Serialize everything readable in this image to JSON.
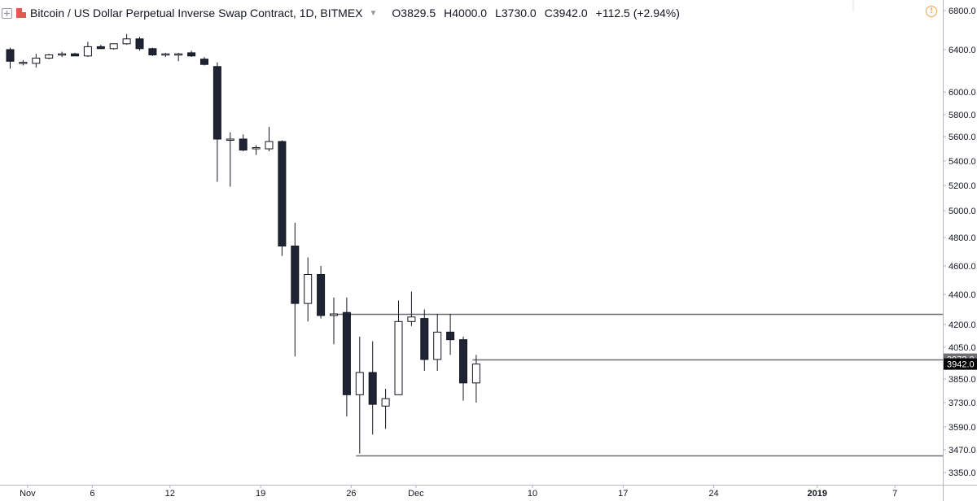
{
  "header": {
    "title": "Bitcoin / US Dollar Perpetual Inverse Swap Contract, 1D, BITMEX",
    "ohlc": [
      {
        "key": "O",
        "value": "3829.5"
      },
      {
        "key": "H",
        "value": "4000.0"
      },
      {
        "key": "L",
        "value": "3730.0"
      },
      {
        "key": "C",
        "value": "3942.0"
      }
    ],
    "change": "+112.5 (+2.94%)",
    "icons": {
      "expand": "expand-icon",
      "logo": "bitmex-logo",
      "dropdown": "chevron-down-icon",
      "warning": "warning-icon"
    }
  },
  "chart_data": {
    "type": "candlestick",
    "up_color": "#ffffff",
    "down_color": "#1f2333",
    "outline_color": "#131722",
    "y_ticks": [
      3350,
      3470,
      3590,
      3730,
      3850,
      3970,
      4050,
      4200,
      4400,
      4600,
      4800,
      5000,
      5200,
      5400,
      5600,
      5800,
      6000,
      6400,
      6800
    ],
    "y_tick_labels": [
      "3350.0",
      "3470.0",
      "3590.0",
      "3730.0",
      "3850.0",
      "3970.0",
      "4050.0",
      "4200.0",
      "4400.0",
      "4600.0",
      "4800.0",
      "5000.0",
      "5200.0",
      "5400.0",
      "5600.0",
      "5800.0",
      "6000.0",
      "6400.0",
      "6800.0"
    ],
    "x_ticks": [
      {
        "day": 1,
        "label": "Nov"
      },
      {
        "day": 6,
        "label": "6"
      },
      {
        "day": 12,
        "label": "12"
      },
      {
        "day": 19,
        "label": "19"
      },
      {
        "day": 26,
        "label": "26"
      },
      {
        "day": 31,
        "label": "Dec"
      },
      {
        "day": 40,
        "label": "10"
      },
      {
        "day": 47,
        "label": "17"
      },
      {
        "day": 54,
        "label": "24"
      },
      {
        "day": 62,
        "label": "2019"
      },
      {
        "day": 68,
        "label": "7"
      }
    ],
    "candles": [
      {
        "day": 0,
        "o": 6400,
        "h": 6420,
        "l": 6220,
        "c": 6290
      },
      {
        "day": 1,
        "o": 6280,
        "h": 6300,
        "l": 6250,
        "c": 6280
      },
      {
        "day": 2,
        "o": 6270,
        "h": 6360,
        "l": 6230,
        "c": 6320
      },
      {
        "day": 3,
        "o": 6320,
        "h": 6360,
        "l": 6310,
        "c": 6350
      },
      {
        "day": 4,
        "o": 6350,
        "h": 6380,
        "l": 6330,
        "c": 6360
      },
      {
        "day": 5,
        "o": 6360,
        "h": 6370,
        "l": 6340,
        "c": 6340
      },
      {
        "day": 6,
        "o": 6340,
        "h": 6480,
        "l": 6330,
        "c": 6430
      },
      {
        "day": 7,
        "o": 6430,
        "h": 6450,
        "l": 6410,
        "c": 6410
      },
      {
        "day": 8,
        "o": 6410,
        "h": 6460,
        "l": 6400,
        "c": 6460
      },
      {
        "day": 9,
        "o": 6460,
        "h": 6560,
        "l": 6450,
        "c": 6510
      },
      {
        "day": 10,
        "o": 6510,
        "h": 6530,
        "l": 6390,
        "c": 6410
      },
      {
        "day": 11,
        "o": 6410,
        "h": 6420,
        "l": 6340,
        "c": 6350
      },
      {
        "day": 12,
        "o": 6350,
        "h": 6370,
        "l": 6330,
        "c": 6360
      },
      {
        "day": 13,
        "o": 6360,
        "h": 6370,
        "l": 6290,
        "c": 6360
      },
      {
        "day": 14,
        "o": 6370,
        "h": 6390,
        "l": 6330,
        "c": 6340
      },
      {
        "day": 15,
        "o": 6310,
        "h": 6330,
        "l": 6250,
        "c": 6260
      },
      {
        "day": 16,
        "o": 6240,
        "h": 6280,
        "l": 5230,
        "c": 5580
      },
      {
        "day": 17,
        "o": 5580,
        "h": 5640,
        "l": 5190,
        "c": 5580
      },
      {
        "day": 18,
        "o": 5580,
        "h": 5620,
        "l": 5480,
        "c": 5490
      },
      {
        "day": 19,
        "o": 5500,
        "h": 5530,
        "l": 5450,
        "c": 5510
      },
      {
        "day": 20,
        "o": 5500,
        "h": 5690,
        "l": 5480,
        "c": 5560
      },
      {
        "day": 21,
        "o": 5560,
        "h": 5570,
        "l": 4670,
        "c": 4740
      },
      {
        "day": 22,
        "o": 4740,
        "h": 4910,
        "l": 3990,
        "c": 4340
      },
      {
        "day": 23,
        "o": 4340,
        "h": 4660,
        "l": 4220,
        "c": 4540
      },
      {
        "day": 24,
        "o": 4540,
        "h": 4600,
        "l": 4240,
        "c": 4260
      },
      {
        "day": 25,
        "o": 4260,
        "h": 4380,
        "l": 4070,
        "c": 4270
      },
      {
        "day": 26,
        "o": 4280,
        "h": 4380,
        "l": 3650,
        "c": 3770
      },
      {
        "day": 27,
        "o": 3770,
        "h": 4120,
        "l": 3450,
        "c": 3890
      },
      {
        "day": 28,
        "o": 3890,
        "h": 4090,
        "l": 3550,
        "c": 3720
      },
      {
        "day": 29,
        "o": 3710,
        "h": 3800,
        "l": 3580,
        "c": 3750
      },
      {
        "day": 30,
        "o": 3770,
        "h": 4360,
        "l": 3770,
        "c": 4220
      },
      {
        "day": 31,
        "o": 4220,
        "h": 4420,
        "l": 4190,
        "c": 4250
      },
      {
        "day": 32,
        "o": 4240,
        "h": 4300,
        "l": 3900,
        "c": 3970
      },
      {
        "day": 33,
        "o": 3970,
        "h": 4270,
        "l": 3900,
        "c": 4150
      },
      {
        "day": 34,
        "o": 4150,
        "h": 4270,
        "l": 4000,
        "c": 4100
      },
      {
        "day": 35,
        "o": 4100,
        "h": 4120,
        "l": 3740,
        "c": 3830
      },
      {
        "day": 36,
        "o": 3830,
        "h": 4000,
        "l": 3730,
        "c": 3942
      }
    ],
    "horizontal_lines": [
      {
        "price": 4270,
        "from_day": 25
      },
      {
        "price": 3972,
        "from_day": 36
      },
      {
        "price": 3440,
        "from_day": 27
      }
    ],
    "price_tags": [
      {
        "price": 3972,
        "label": "3972.0",
        "bg": "#6d6f75"
      },
      {
        "price": 3942,
        "label": "3942.0",
        "bg": "#000000"
      }
    ]
  }
}
